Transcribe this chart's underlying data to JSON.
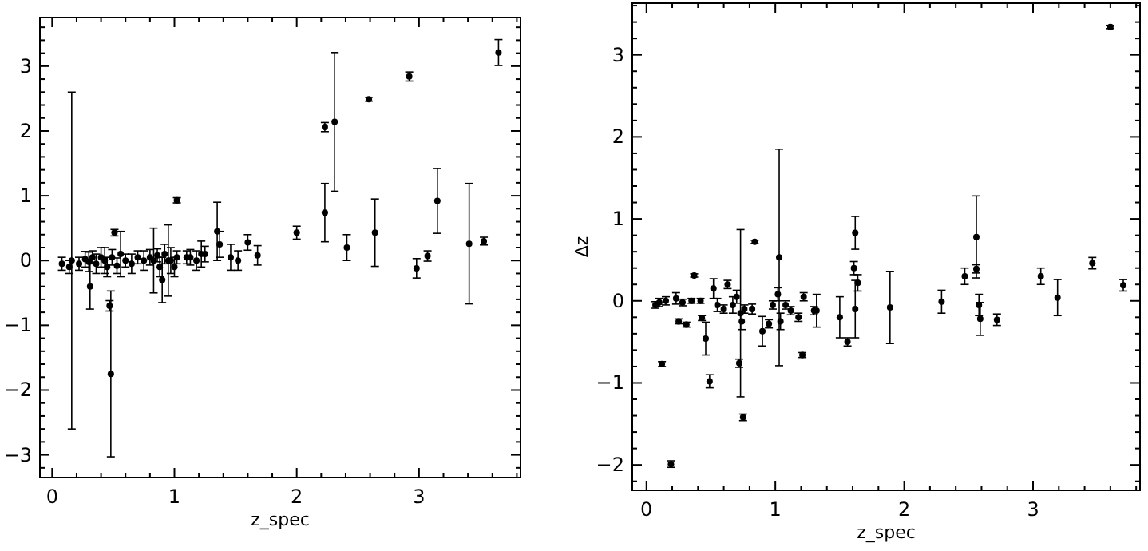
{
  "chart_data": [
    {
      "type": "scatter",
      "xlabel": "z_spec",
      "marker": "circle",
      "xlim": [
        -0.1,
        3.83
      ],
      "ylim": [
        -3.35,
        3.75
      ],
      "xticks": [
        0,
        {
          "value": 0.2,
          "label": null
        },
        {
          "value": 0.4,
          "label": null
        },
        {
          "value": 0.6,
          "label": null
        },
        {
          "value": 0.8,
          "label": null
        },
        1,
        {
          "value": 1.2,
          "label": null
        },
        {
          "value": 1.4,
          "label": null
        },
        {
          "value": 1.6,
          "label": null
        },
        {
          "value": 1.8,
          "label": null
        },
        2,
        {
          "value": 2.2,
          "label": null
        },
        {
          "value": 2.4,
          "label": null
        },
        {
          "value": 2.6,
          "label": null
        },
        {
          "value": 2.8,
          "label": null
        },
        3,
        {
          "value": 3.2,
          "label": null
        },
        {
          "value": 3.4,
          "label": null
        },
        {
          "value": 3.6,
          "label": null
        },
        {
          "value": 3.8,
          "label": null
        }
      ],
      "yticks": [
        {
          "value": -3.2,
          "label": null
        },
        -3,
        {
          "value": -2.8,
          "label": null
        },
        {
          "value": -2.6,
          "label": null
        },
        {
          "value": -2.4,
          "label": null
        },
        {
          "value": -2.2,
          "label": null
        },
        -2,
        {
          "value": -1.8,
          "label": null
        },
        {
          "value": -1.6,
          "label": null
        },
        {
          "value": -1.4,
          "label": null
        },
        {
          "value": -1.2,
          "label": null
        },
        -1,
        {
          "value": -0.8,
          "label": null
        },
        {
          "value": -0.6,
          "label": null
        },
        {
          "value": -0.4,
          "label": null
        },
        {
          "value": -0.2,
          "label": null
        },
        0,
        {
          "value": 0.2,
          "label": null
        },
        {
          "value": 0.4,
          "label": null
        },
        {
          "value": 0.6,
          "label": null
        },
        {
          "value": 0.8,
          "label": null
        },
        1,
        {
          "value": 1.2,
          "label": null
        },
        {
          "value": 1.4,
          "label": null
        },
        {
          "value": 1.6,
          "label": null
        },
        {
          "value": 1.8,
          "label": null
        },
        2,
        {
          "value": 2.2,
          "label": null
        },
        {
          "value": 2.4,
          "label": null
        },
        {
          "value": 2.6,
          "label": null
        },
        {
          "value": 2.8,
          "label": null
        },
        3,
        {
          "value": 3.2,
          "label": null
        },
        {
          "value": 3.4,
          "label": null
        },
        {
          "value": 3.6,
          "label": null
        }
      ],
      "series": [
        {
          "color": "#000000",
          "x": [
            0.16,
            0.48,
            0.47,
            0.31,
            0.51,
            0.56,
            1.02,
            1.35,
            1.37,
            1.6,
            1.68,
            2.0,
            0.83,
            0.9,
            0.95,
            1.46,
            1.52,
            1.22,
            1.13,
            2.23,
            2.31,
            2.23,
            2.59,
            2.92,
            3.65,
            2.41,
            2.64,
            2.98,
            3.07,
            3.15,
            3.41,
            3.53,
            0.08,
            0.14,
            0.22,
            0.27,
            0.3,
            0.33,
            0.36,
            0.4,
            0.43,
            0.45,
            0.49,
            0.53,
            0.6,
            0.65,
            0.7,
            0.75,
            0.8,
            0.86,
            0.88,
            0.92,
            0.97,
            1.0,
            1.02,
            1.1,
            1.18,
            1.25
          ],
          "values": [
            0,
            -1.75,
            -0.7,
            -0.4,
            0.43,
            0.1,
            0.93,
            0.45,
            0.25,
            0.28,
            0.08,
            0.43,
            0,
            -0.3,
            0,
            0.05,
            0,
            0.1,
            0.05,
            2.06,
            2.14,
            0.74,
            2.49,
            2.84,
            3.21,
            0.2,
            0.43,
            -0.12,
            0.07,
            0.92,
            0.26,
            0.3,
            -0.05,
            -0.1,
            -0.05,
            0.02,
            -0.02,
            0.05,
            -0.05,
            0.05,
            0,
            -0.1,
            0.05,
            -0.08,
            0,
            -0.05,
            0.05,
            0,
            0.05,
            0.08,
            -0.1,
            0.1,
            0,
            -0.1,
            0.05,
            0.05,
            0,
            0.1
          ],
          "errors": [
            2.6,
            1.28,
            0.08,
            0.35,
            0.05,
            0.35,
            0.04,
            0.45,
            0.2,
            0.12,
            0.15,
            0.1,
            0.5,
            0.35,
            0.55,
            0.2,
            0.15,
            0.2,
            0.12,
            0.07,
            1.07,
            0.45,
            0.03,
            0.07,
            0.2,
            0.2,
            0.52,
            0.15,
            0.08,
            0.5,
            0.93,
            0.06,
            0.1,
            0.1,
            0.1,
            0.12,
            0.15,
            0.1,
            0.15,
            0.15,
            0.2,
            0.15,
            0.12,
            0.12,
            0.1,
            0.15,
            0.1,
            0.15,
            0.12,
            0.1,
            0.15,
            0.15,
            0.2,
            0.15,
            0.1,
            0.1,
            0.15,
            0.12
          ]
        }
      ]
    },
    {
      "type": "scatter",
      "xlabel": "z_spec",
      "ylabel": "Δz",
      "marker": "circle",
      "xlim": [
        -0.11,
        3.83
      ],
      "ylim": [
        -2.31,
        3.63
      ],
      "xticks": [
        0,
        {
          "value": 0.2,
          "label": null
        },
        {
          "value": 0.4,
          "label": null
        },
        {
          "value": 0.6,
          "label": null
        },
        {
          "value": 0.8,
          "label": null
        },
        1,
        {
          "value": 1.2,
          "label": null
        },
        {
          "value": 1.4,
          "label": null
        },
        {
          "value": 1.6,
          "label": null
        },
        {
          "value": 1.8,
          "label": null
        },
        2,
        {
          "value": 2.2,
          "label": null
        },
        {
          "value": 2.4,
          "label": null
        },
        {
          "value": 2.6,
          "label": null
        },
        {
          "value": 2.8,
          "label": null
        },
        3,
        {
          "value": 3.2,
          "label": null
        },
        {
          "value": 3.4,
          "label": null
        },
        {
          "value": 3.6,
          "label": null
        },
        {
          "value": 3.8,
          "label": null
        }
      ],
      "yticks": [
        {
          "value": -2.2,
          "label": null
        },
        -2,
        {
          "value": -1.8,
          "label": null
        },
        {
          "value": -1.6,
          "label": null
        },
        {
          "value": -1.4,
          "label": null
        },
        {
          "value": -1.2,
          "label": null
        },
        -1,
        {
          "value": -0.8,
          "label": null
        },
        {
          "value": -0.6,
          "label": null
        },
        {
          "value": -0.4,
          "label": null
        },
        {
          "value": -0.2,
          "label": null
        },
        0,
        {
          "value": 0.2,
          "label": null
        },
        {
          "value": 0.4,
          "label": null
        },
        {
          "value": 0.6,
          "label": null
        },
        {
          "value": 0.8,
          "label": null
        },
        1,
        {
          "value": 1.2,
          "label": null
        },
        {
          "value": 1.4,
          "label": null
        },
        {
          "value": 1.6,
          "label": null
        },
        {
          "value": 1.8,
          "label": null
        },
        2,
        {
          "value": 2.2,
          "label": null
        },
        {
          "value": 2.4,
          "label": null
        },
        {
          "value": 2.6,
          "label": null
        },
        {
          "value": 2.8,
          "label": null
        },
        3,
        {
          "value": 3.2,
          "label": null
        },
        {
          "value": 3.4,
          "label": null
        },
        {
          "value": 3.6,
          "label": null
        }
      ],
      "series": [
        {
          "color": "#000000",
          "x": [
            0.12,
            0.19,
            0.37,
            0.25,
            0.31,
            0.43,
            0.46,
            0.49,
            0.73,
            0.72,
            0.75,
            0.84,
            1.03,
            1.21,
            0.9,
            1.32,
            1.5,
            1.56,
            1.62,
            1.61,
            1.62,
            1.64,
            1.89,
            2.29,
            2.47,
            2.56,
            2.56,
            2.58,
            2.59,
            2.72,
            3.06,
            3.19,
            3.46,
            3.7,
            3.6,
            0.07,
            0.1,
            0.15,
            0.23,
            0.28,
            0.35,
            0.42,
            0.52,
            0.55,
            0.6,
            0.63,
            0.67,
            0.7,
            0.74,
            0.76,
            0.82,
            0.95,
            0.98,
            1.02,
            1.04,
            1.08,
            1.12,
            1.18,
            1.22,
            1.3
          ],
          "values": [
            -0.77,
            -1.99,
            0.31,
            -0.25,
            -0.29,
            -0.21,
            -0.46,
            -0.98,
            -0.15,
            -0.76,
            -1.42,
            0.72,
            0.53,
            -0.66,
            -0.37,
            -0.12,
            -0.2,
            -0.5,
            0.83,
            0.4,
            -0.1,
            0.22,
            -0.08,
            -0.01,
            0.3,
            0.78,
            0.39,
            -0.05,
            -0.22,
            -0.23,
            0.3,
            0.04,
            0.46,
            0.19,
            3.34,
            -0.05,
            -0.02,
            0,
            0.03,
            -0.02,
            0,
            0,
            0.15,
            -0.05,
            -0.1,
            0.2,
            -0.05,
            0.05,
            -0.25,
            -0.1,
            -0.1,
            -0.28,
            -0.05,
            0.08,
            -0.25,
            -0.05,
            -0.12,
            -0.2,
            0.05,
            -0.12
          ],
          "errors": [
            0.03,
            0.04,
            0.02,
            0.03,
            0.03,
            0.03,
            0.2,
            0.08,
            1.02,
            0.05,
            0.04,
            0.02,
            1.32,
            0.03,
            0.18,
            0.2,
            0.25,
            0.05,
            0.2,
            0.08,
            0.35,
            0.1,
            0.44,
            0.14,
            0.1,
            0.5,
            0.05,
            0.13,
            0.2,
            0.07,
            0.1,
            0.22,
            0.07,
            0.07,
            0.02,
            0.04,
            0.05,
            0.05,
            0.07,
            0.04,
            0.03,
            0.03,
            0.12,
            0.08,
            0.05,
            0.05,
            0.1,
            0.08,
            0.1,
            0.05,
            0.06,
            0.05,
            0.05,
            0.08,
            0.1,
            0.05,
            0.05,
            0.05,
            0.05,
            0.05
          ]
        }
      ]
    }
  ]
}
